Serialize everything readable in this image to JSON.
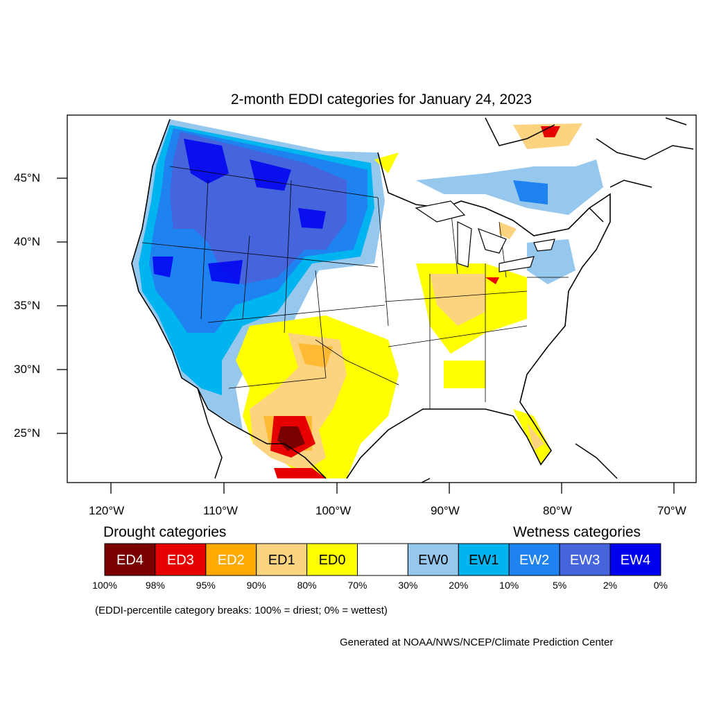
{
  "title": "2-month EDDI categories for January 24, 2023",
  "lat_labels": [
    "45°N",
    "40°N",
    "35°N",
    "30°N",
    "25°N"
  ],
  "lon_labels": [
    "120°W",
    "110°W",
    "100°W",
    "90°W",
    "80°W",
    "70°W"
  ],
  "drought_heading": "Drought categories",
  "wetness_heading": "Wetness categories",
  "legend": [
    {
      "label": "ED4",
      "color": "#7a0000",
      "text_color": "#ffffff"
    },
    {
      "label": "ED3",
      "color": "#e60000",
      "text_color": "#ffffff"
    },
    {
      "label": "ED2",
      "color": "#ffaa00",
      "text_color": "#ffffff"
    },
    {
      "label": "ED1",
      "color": "#fcd37f",
      "text_color": "#000000"
    },
    {
      "label": "ED0",
      "color": "#ffff00",
      "text_color": "#000000"
    },
    {
      "label": "",
      "color": "#ffffff",
      "text_color": "#000000"
    },
    {
      "label": "EW0",
      "color": "#96c8ee",
      "text_color": "#000000"
    },
    {
      "label": "EW1",
      "color": "#00b4f0",
      "text_color": "#000000"
    },
    {
      "label": "EW2",
      "color": "#1e82f0",
      "text_color": "#ffffff"
    },
    {
      "label": "EW3",
      "color": "#4664dc",
      "text_color": "#ffffff"
    },
    {
      "label": "EW4",
      "color": "#0000f0",
      "text_color": "#ffffff"
    }
  ],
  "percentiles": [
    "100%",
    "98%",
    "95%",
    "90%",
    "80%",
    "70%",
    "30%",
    "20%",
    "10%",
    "5%",
    "2%",
    "0%"
  ],
  "breaks_note": "(EDDI-percentile category breaks: 100% = driest; 0% = wettest)",
  "credit": "Generated at NOAA/NWS/NCEP/Climate Prediction Center"
}
